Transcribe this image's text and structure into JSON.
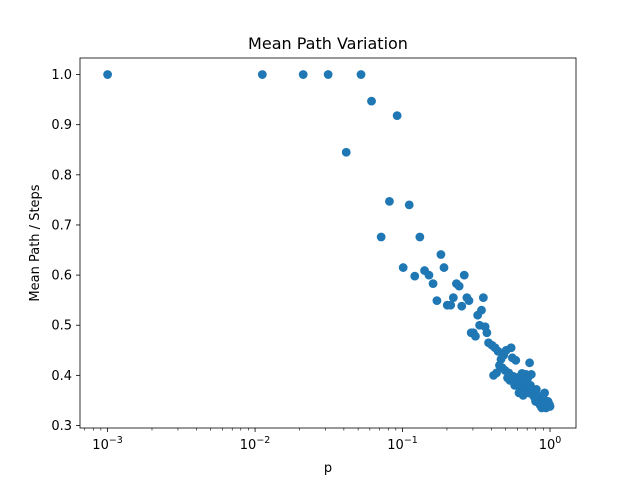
{
  "chart_data": {
    "type": "scatter",
    "title": "Mean Path Variation",
    "xlabel": "p",
    "ylabel": "Mean Path / Steps",
    "xscale": "log",
    "xlim": [
      0.00065,
      1.5
    ],
    "ylim": [
      0.295,
      1.033
    ],
    "grid": false,
    "legend": "none",
    "marker_color": "#1f77b4",
    "x_tick_labels": [
      {
        "value": 0.001,
        "base": "10",
        "exp": "−3"
      },
      {
        "value": 0.01,
        "base": "10",
        "exp": "−2"
      },
      {
        "value": 0.1,
        "base": "10",
        "exp": "−1"
      },
      {
        "value": 1,
        "base": "10",
        "exp": "0"
      }
    ],
    "y_tick_labels": [
      "0.3",
      "0.4",
      "0.5",
      "0.6",
      "0.7",
      "0.8",
      "0.9",
      "1.0"
    ],
    "y_ticks": [
      0.3,
      0.4,
      0.5,
      0.6,
      0.7,
      0.8,
      0.9,
      1.0
    ],
    "points": [
      [
        0.001,
        1.0
      ],
      [
        0.0112,
        1.0
      ],
      [
        0.0212,
        1.0
      ],
      [
        0.0313,
        1.0
      ],
      [
        0.0523,
        1.0
      ],
      [
        0.0616,
        0.947
      ],
      [
        0.0919,
        0.918
      ],
      [
        0.0415,
        0.845
      ],
      [
        0.0815,
        0.747
      ],
      [
        0.111,
        0.74
      ],
      [
        0.0716,
        0.676
      ],
      [
        0.131,
        0.676
      ],
      [
        0.182,
        0.641
      ],
      [
        0.101,
        0.615
      ],
      [
        0.191,
        0.615
      ],
      [
        0.141,
        0.609
      ],
      [
        0.151,
        0.6
      ],
      [
        0.121,
        0.598
      ],
      [
        0.262,
        0.6
      ],
      [
        0.161,
        0.583
      ],
      [
        0.232,
        0.583
      ],
      [
        0.242,
        0.578
      ],
      [
        0.221,
        0.555
      ],
      [
        0.353,
        0.555
      ],
      [
        0.171,
        0.549
      ],
      [
        0.282,
        0.549
      ],
      [
        0.201,
        0.54
      ],
      [
        0.212,
        0.54
      ],
      [
        0.252,
        0.538
      ],
      [
        0.273,
        0.555
      ],
      [
        0.343,
        0.53
      ],
      [
        0.323,
        0.52
      ],
      [
        0.333,
        0.5
      ],
      [
        0.363,
        0.497
      ],
      [
        0.302,
        0.485
      ],
      [
        0.292,
        0.485
      ],
      [
        0.373,
        0.485
      ],
      [
        0.312,
        0.478
      ],
      [
        0.383,
        0.465
      ],
      [
        0.404,
        0.46
      ],
      [
        0.424,
        0.455
      ],
      [
        0.444,
        0.448
      ],
      [
        0.505,
        0.45
      ],
      [
        0.545,
        0.455
      ],
      [
        0.485,
        0.44
      ],
      [
        0.555,
        0.435
      ],
      [
        0.586,
        0.43
      ],
      [
        0.465,
        0.432
      ],
      [
        0.454,
        0.42
      ],
      [
        0.475,
        0.415
      ],
      [
        0.495,
        0.41
      ],
      [
        0.434,
        0.405
      ],
      [
        0.414,
        0.4
      ],
      [
        0.525,
        0.405
      ],
      [
        0.515,
        0.395
      ],
      [
        0.535,
        0.39
      ],
      [
        0.565,
        0.398
      ],
      [
        0.596,
        0.393
      ],
      [
        0.616,
        0.388
      ],
      [
        0.636,
        0.4
      ],
      [
        0.646,
        0.404
      ],
      [
        0.667,
        0.398
      ],
      [
        0.687,
        0.402
      ],
      [
        0.707,
        0.395
      ],
      [
        0.727,
        0.425
      ],
      [
        0.747,
        0.402
      ],
      [
        0.576,
        0.38
      ],
      [
        0.606,
        0.385
      ],
      [
        0.626,
        0.375
      ],
      [
        0.657,
        0.368
      ],
      [
        0.677,
        0.38
      ],
      [
        0.697,
        0.39
      ],
      [
        0.717,
        0.365
      ],
      [
        0.737,
        0.38
      ],
      [
        0.758,
        0.37
      ],
      [
        0.768,
        0.36
      ],
      [
        0.778,
        0.37
      ],
      [
        0.788,
        0.355
      ],
      [
        0.798,
        0.348
      ],
      [
        0.808,
        0.372
      ],
      [
        0.818,
        0.36
      ],
      [
        0.828,
        0.352
      ],
      [
        0.838,
        0.345
      ],
      [
        0.848,
        0.355
      ],
      [
        0.859,
        0.34
      ],
      [
        0.869,
        0.35
      ],
      [
        0.879,
        0.335
      ],
      [
        0.889,
        0.345
      ],
      [
        0.899,
        0.338
      ],
      [
        0.909,
        0.352
      ],
      [
        0.919,
        0.365
      ],
      [
        0.929,
        0.34
      ],
      [
        0.939,
        0.335
      ],
      [
        0.949,
        0.345
      ],
      [
        0.96,
        0.338
      ],
      [
        0.97,
        0.348
      ],
      [
        0.98,
        0.338
      ],
      [
        0.99,
        0.342
      ],
      [
        1.0,
        0.338
      ],
      [
        0.616,
        0.365
      ],
      [
        0.657,
        0.36
      ],
      [
        0.697,
        0.38
      ]
    ]
  }
}
